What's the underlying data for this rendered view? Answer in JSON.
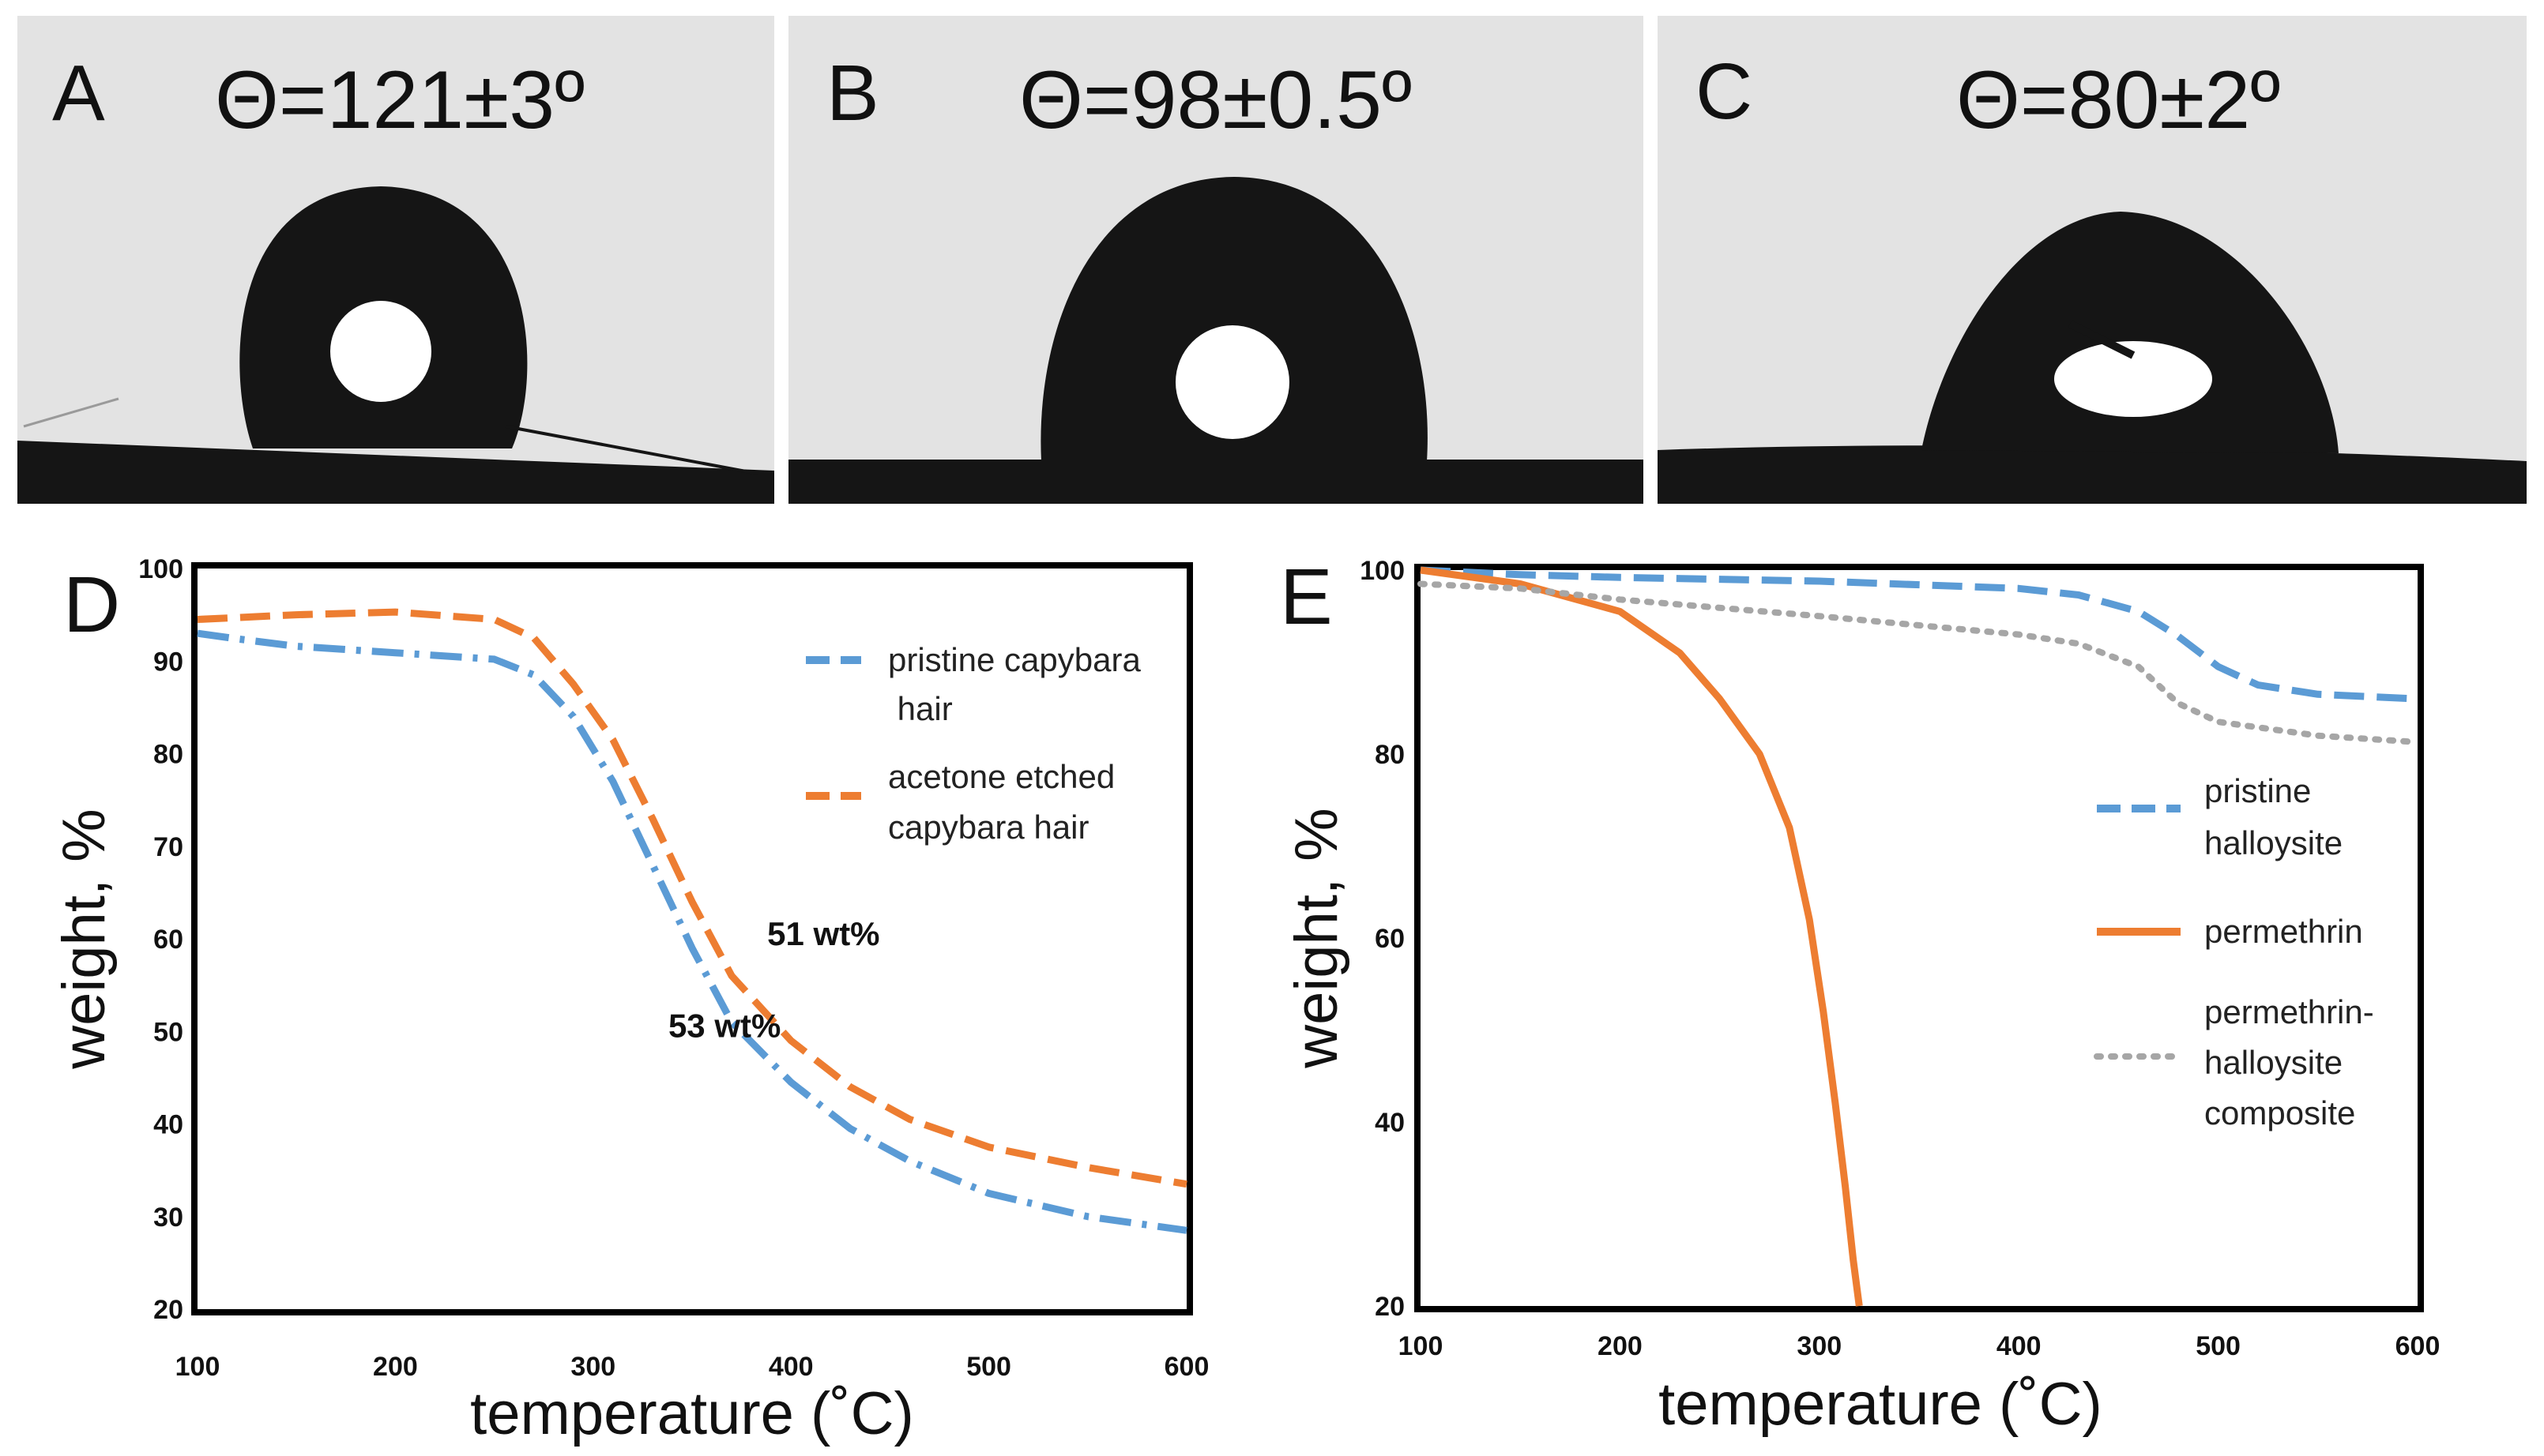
{
  "colors": {
    "blue": "#5b9bd5",
    "orange": "#ed7d31",
    "gray": "#a6a6a6",
    "photo_bg": "#e3e3e3",
    "drop": "#151515"
  },
  "photos": [
    {
      "letter": "A",
      "angle": "Θ=121±3º"
    },
    {
      "letter": "B",
      "angle": "Θ=98±0.5º"
    },
    {
      "letter": "C",
      "angle": "Θ=80±2º"
    }
  ],
  "chart_data": [
    {
      "panel": "D",
      "type": "line",
      "xlabel": "temperature (˚C)",
      "ylabel": "weight, %",
      "xlim": [
        100,
        600
      ],
      "ylim": [
        20,
        100
      ],
      "xticks": [
        100,
        200,
        300,
        400,
        500,
        600
      ],
      "yticks": [
        100,
        90,
        80,
        70,
        60,
        50,
        40,
        30,
        20
      ],
      "legend_position": "top-right",
      "series": [
        {
          "name": "pristine capybara hair",
          "legend_lines": [
            "pristine capybara",
            " hair"
          ],
          "color": "blue",
          "style": "dash-dot",
          "points": [
            [
              100,
              93
            ],
            [
              120,
              92.4
            ],
            [
              150,
              91.6
            ],
            [
              200,
              90.9
            ],
            [
              250,
              90.2
            ],
            [
              270,
              88.5
            ],
            [
              290,
              84
            ],
            [
              310,
              77
            ],
            [
              330,
              68
            ],
            [
              350,
              59
            ],
            [
              370,
              51
            ],
            [
              400,
              44.5
            ],
            [
              430,
              39.5
            ],
            [
              460,
              36
            ],
            [
              500,
              32.5
            ],
            [
              550,
              30
            ],
            [
              600,
              28.5
            ]
          ]
        },
        {
          "name": "acetone etched capybara hair",
          "legend_lines": [
            "acetone etched",
            "capybara hair"
          ],
          "color": "orange",
          "style": "dashed",
          "points": [
            [
              100,
              94.5
            ],
            [
              150,
              95
            ],
            [
              200,
              95.3
            ],
            [
              250,
              94.5
            ],
            [
              270,
              92.5
            ],
            [
              290,
              87.5
            ],
            [
              310,
              81.5
            ],
            [
              330,
              73
            ],
            [
              350,
              64
            ],
            [
              370,
              56
            ],
            [
              400,
              49
            ],
            [
              430,
              44
            ],
            [
              460,
              40.5
            ],
            [
              500,
              37.5
            ],
            [
              550,
              35.3
            ],
            [
              600,
              33.5
            ]
          ]
        }
      ],
      "annotations": [
        {
          "text": "53 wt%",
          "x": 338,
          "y": 49.4
        },
        {
          "text": "51 wt%",
          "x": 388,
          "y": 59.3
        }
      ]
    },
    {
      "panel": "E",
      "type": "line",
      "xlabel": "temperature (˚C)",
      "ylabel": "weight, %",
      "xlim": [
        100,
        600
      ],
      "ylim": [
        20,
        100
      ],
      "xticks": [
        100,
        200,
        300,
        400,
        500,
        600
      ],
      "yticks": [
        100,
        80,
        60,
        40,
        20
      ],
      "legend_position": "right",
      "series": [
        {
          "name": "pristine halloysite",
          "legend_lines": [
            "pristine",
            "halloysite"
          ],
          "color": "blue",
          "style": "dashed",
          "points": [
            [
              100,
              100
            ],
            [
              150,
              99.5
            ],
            [
              200,
              99.2
            ],
            [
              300,
              98.8
            ],
            [
              400,
              98
            ],
            [
              430,
              97.3
            ],
            [
              460,
              95.5
            ],
            [
              480,
              92.8
            ],
            [
              500,
              89.5
            ],
            [
              520,
              87.5
            ],
            [
              550,
              86.5
            ],
            [
              600,
              86
            ]
          ]
        },
        {
          "name": "permethrin",
          "legend_lines": [
            "permethrin"
          ],
          "color": "orange",
          "style": "solid",
          "points": [
            [
              100,
              100
            ],
            [
              150,
              98.5
            ],
            [
              200,
              95.5
            ],
            [
              230,
              91
            ],
            [
              250,
              86
            ],
            [
              270,
              80
            ],
            [
              285,
              72
            ],
            [
              295,
              62
            ],
            [
              302,
              52
            ],
            [
              308,
              42
            ],
            [
              313,
              33
            ],
            [
              317,
              25
            ],
            [
              320,
              20
            ]
          ]
        },
        {
          "name": "permethrin-halloysite composite",
          "legend_lines": [
            "permethrin-",
            "halloysite",
            "composite"
          ],
          "color": "gray",
          "style": "dotted",
          "points": [
            [
              100,
              98.5
            ],
            [
              150,
              98
            ],
            [
              200,
              96.8
            ],
            [
              300,
              95
            ],
            [
              400,
              93
            ],
            [
              430,
              92
            ],
            [
              460,
              89.5
            ],
            [
              480,
              85.5
            ],
            [
              500,
              83.5
            ],
            [
              550,
              82
            ],
            [
              600,
              81.3
            ]
          ]
        }
      ]
    }
  ]
}
